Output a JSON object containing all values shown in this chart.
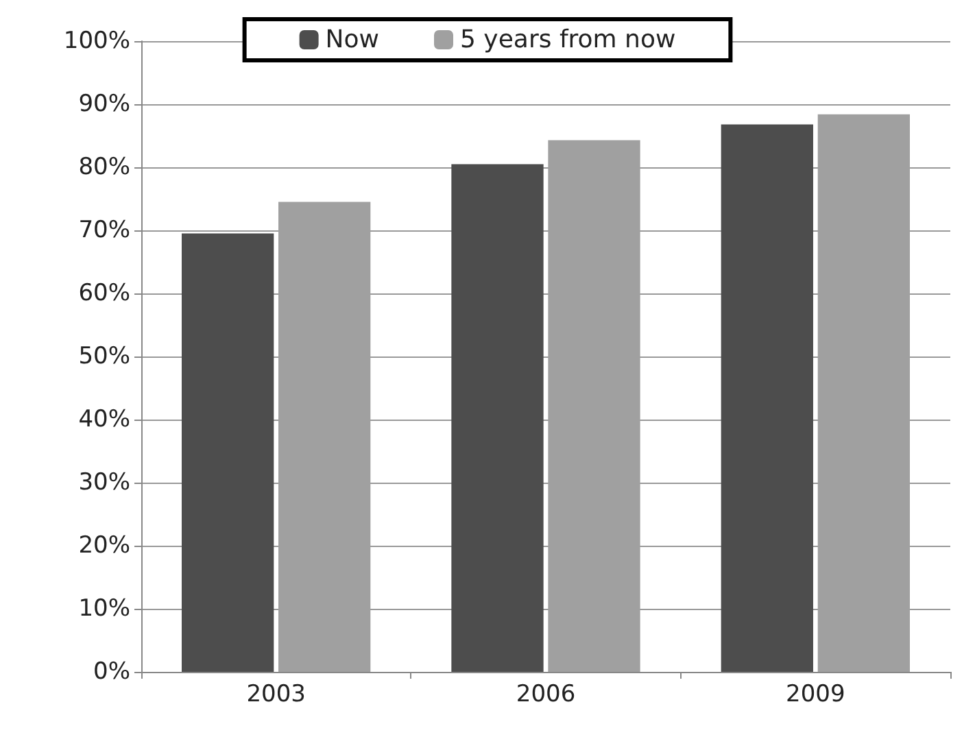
{
  "chart_data": {
    "type": "bar",
    "categories": [
      "2003",
      "2006",
      "2009"
    ],
    "series": [
      {
        "name": "Now",
        "color": "#4d4d4d",
        "values": [
          69.5,
          80.5,
          86.8
        ]
      },
      {
        "name": "5 years from now",
        "color": "#a0a0a0",
        "values": [
          74.5,
          84.3,
          88.4
        ]
      }
    ],
    "ylim": [
      0,
      100
    ],
    "yticks": [
      {
        "value": 0,
        "label": "0%"
      },
      {
        "value": 10,
        "label": "10%"
      },
      {
        "value": 20,
        "label": "20%"
      },
      {
        "value": 30,
        "label": "30%"
      },
      {
        "value": 40,
        "label": "40%"
      },
      {
        "value": 50,
        "label": "50%"
      },
      {
        "value": 60,
        "label": "60%"
      },
      {
        "value": 70,
        "label": "70%"
      },
      {
        "value": 80,
        "label": "80%"
      },
      {
        "value": 90,
        "label": "90%"
      },
      {
        "value": 100,
        "label": "100%"
      }
    ],
    "grid": "y",
    "legend": "top"
  }
}
